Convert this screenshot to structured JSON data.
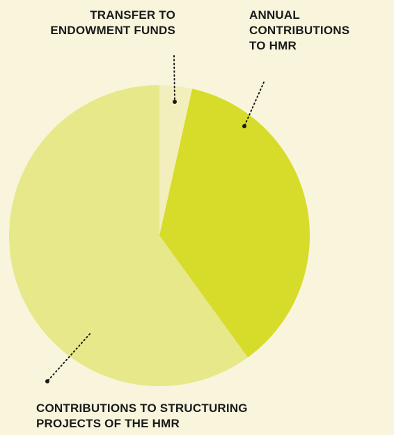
{
  "page": {
    "background": "#f8f5dc"
  },
  "chart_data": {
    "type": "pie",
    "title": "",
    "start_angle_deg": 0,
    "direction": "clockwise",
    "slices": [
      {
        "label_lines": [
          "TRANSFER TO",
          "ENDOWMENT FUNDS"
        ],
        "value": 3.5,
        "color": "#f3efbc"
      },
      {
        "label_lines": [
          "ANNUAL",
          "CONTRIBUTIONS",
          "TO HMR"
        ],
        "value": 36.5,
        "color": "#d7dc2a"
      },
      {
        "label_lines": [
          "CONTRIBUTIONS TO STRUCTURING",
          "PROJECTS OF THE HMR"
        ],
        "value": 60,
        "color": "#e7e88a"
      }
    ],
    "legend": "none",
    "leader_line_color": "#1a1a1a",
    "label_color": "#1a1a1a"
  }
}
